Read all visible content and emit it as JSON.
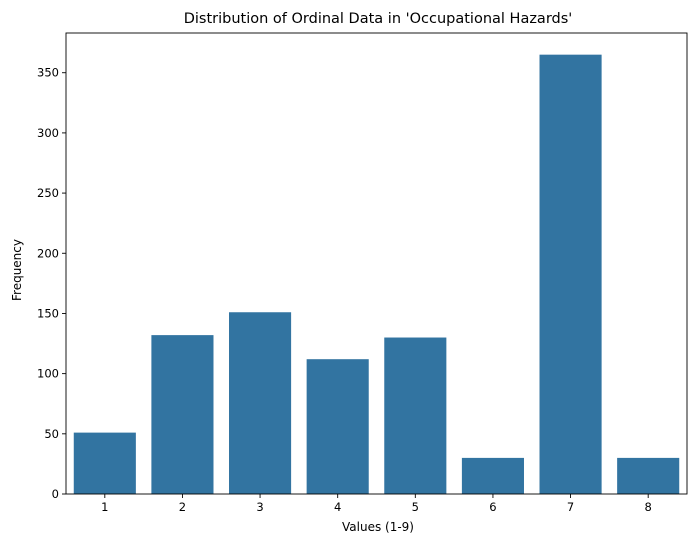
{
  "chart_data": {
    "type": "bar",
    "title": "Distribution of Ordinal Data in 'Occupational Hazards'",
    "xlabel": "Values (1-9)",
    "ylabel": "Frequency",
    "categories": [
      "1",
      "2",
      "3",
      "4",
      "5",
      "6",
      "7",
      "8"
    ],
    "values": [
      51,
      132,
      151,
      112,
      130,
      30,
      365,
      30
    ],
    "ylim": [
      0,
      383
    ],
    "yticks": [
      0,
      50,
      100,
      150,
      200,
      250,
      300,
      350
    ],
    "grid": false,
    "bar_color": "#3274a1"
  }
}
